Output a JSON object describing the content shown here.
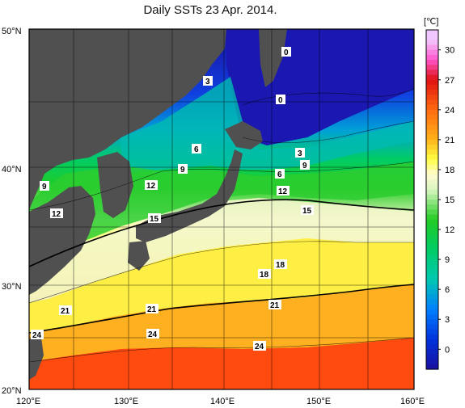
{
  "title": "Daily SSTs 23 Apr. 2014.",
  "colorbar": {
    "unit": "[℃]",
    "tick_labels": [
      "30",
      "27",
      "24",
      "21",
      "18",
      "15",
      "12",
      "9",
      "6",
      "3",
      "0"
    ],
    "stops": [
      {
        "v": 31,
        "c": "#f0c8ff"
      },
      {
        "v": 29,
        "c": "#ff55cc"
      },
      {
        "v": 27,
        "c": "#e01010"
      },
      {
        "v": 24,
        "c": "#ff6a10"
      },
      {
        "v": 21,
        "c": "#ffb21a"
      },
      {
        "v": 19,
        "c": "#ffff44"
      },
      {
        "v": 17.5,
        "c": "#fffbd0"
      },
      {
        "v": 16,
        "c": "#d8f5c0"
      },
      {
        "v": 13,
        "c": "#22cc22"
      },
      {
        "v": 10,
        "c": "#00cc66"
      },
      {
        "v": 7,
        "c": "#00c8b0"
      },
      {
        "v": 4,
        "c": "#0080ff"
      },
      {
        "v": 1,
        "c": "#0033dd"
      },
      {
        "v": -2,
        "c": "#1a10a0"
      }
    ]
  },
  "axes": {
    "lat_labels": [
      "50°N",
      "40°N",
      "30°N",
      "20°N"
    ],
    "lon_labels": [
      "120°E",
      "130°E",
      "140°E",
      "150°E",
      "160°E"
    ]
  },
  "land_color": "#505050",
  "isotherm_labels": [
    {
      "text": "0",
      "id": "iso-0-a"
    },
    {
      "text": "0",
      "id": "iso-0-b"
    },
    {
      "text": "3",
      "id": "iso-3-a"
    },
    {
      "text": "3",
      "id": "iso-3-b"
    },
    {
      "text": "6",
      "id": "iso-6-a"
    },
    {
      "text": "6",
      "id": "iso-6-b"
    },
    {
      "text": "9",
      "id": "iso-9-a"
    },
    {
      "text": "9",
      "id": "iso-9-b"
    },
    {
      "text": "9",
      "id": "iso-9-c"
    },
    {
      "text": "12",
      "id": "iso-12-a"
    },
    {
      "text": "12",
      "id": "iso-12-b"
    },
    {
      "text": "12",
      "id": "iso-12-c"
    },
    {
      "text": "15",
      "id": "iso-15-a"
    },
    {
      "text": "15",
      "id": "iso-15-b"
    },
    {
      "text": "18",
      "id": "iso-18-a"
    },
    {
      "text": "18",
      "id": "iso-18-b"
    },
    {
      "text": "21",
      "id": "iso-21-a"
    },
    {
      "text": "21",
      "id": "iso-21-b"
    },
    {
      "text": "21",
      "id": "iso-21-c"
    },
    {
      "text": "24",
      "id": "iso-24-a"
    },
    {
      "text": "24",
      "id": "iso-24-b"
    },
    {
      "text": "24",
      "id": "iso-24-c"
    }
  ]
}
